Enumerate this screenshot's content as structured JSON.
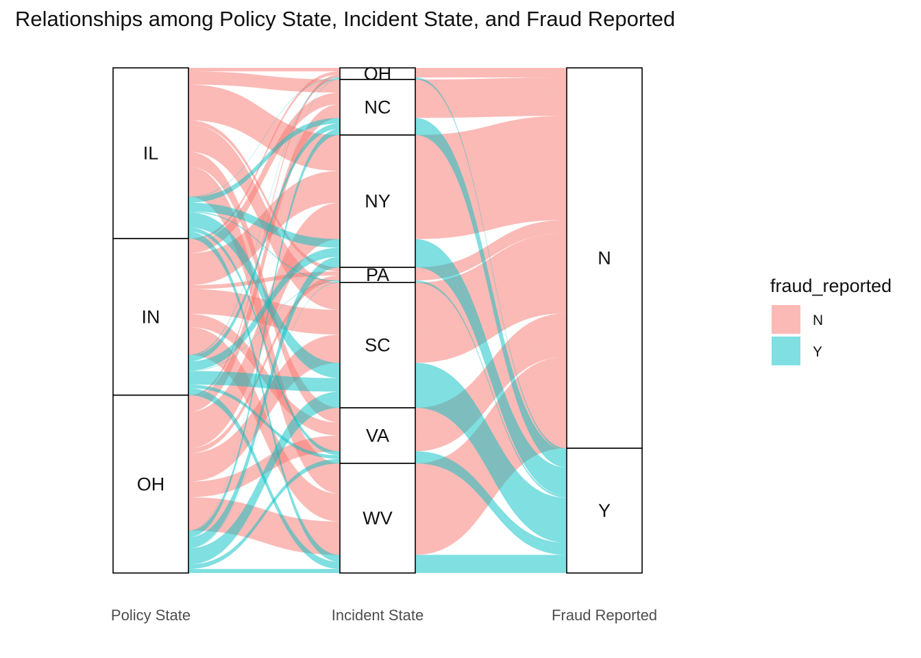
{
  "chart_data": {
    "type": "alluvial",
    "title": "Relationships among Policy State, Incident State, and Fraud Reported",
    "axes": [
      "Policy State",
      "Incident State",
      "Fraud Reported"
    ],
    "legend": {
      "title": "fraud_reported",
      "position": "right",
      "entries": [
        "N",
        "Y"
      ]
    },
    "colors": {
      "N": "#F8766D",
      "Y": "#00BFC4"
    },
    "strata": {
      "Policy State": [
        {
          "label": "IL",
          "count": 338
        },
        {
          "label": "IN",
          "count": 310
        },
        {
          "label": "OH",
          "count": 352
        }
      ],
      "Incident State": [
        {
          "label": "OH",
          "count": 23
        },
        {
          "label": "NC",
          "count": 110
        },
        {
          "label": "NY",
          "count": 262
        },
        {
          "label": "PA",
          "count": 30
        },
        {
          "label": "SC",
          "count": 248
        },
        {
          "label": "VA",
          "count": 110
        },
        {
          "label": "WV",
          "count": 217
        }
      ],
      "Fraud Reported": [
        {
          "label": "N",
          "count": 753
        },
        {
          "label": "Y",
          "count": 247
        }
      ]
    },
    "flows": [
      {
        "policy": "IL",
        "incident": "OH",
        "fraud": "N",
        "count": 7
      },
      {
        "policy": "IL",
        "incident": "OH",
        "fraud": "Y",
        "count": 1
      },
      {
        "policy": "IL",
        "incident": "NC",
        "fraud": "N",
        "count": 26
      },
      {
        "policy": "IL",
        "incident": "NC",
        "fraud": "Y",
        "count": 11
      },
      {
        "policy": "IL",
        "incident": "NY",
        "fraud": "N",
        "count": 71
      },
      {
        "policy": "IL",
        "incident": "NY",
        "fraud": "Y",
        "count": 17
      },
      {
        "policy": "IL",
        "incident": "PA",
        "fraud": "N",
        "count": 8
      },
      {
        "policy": "IL",
        "incident": "PA",
        "fraud": "Y",
        "count": 2
      },
      {
        "policy": "IL",
        "incident": "SC",
        "fraud": "N",
        "count": 54
      },
      {
        "policy": "IL",
        "incident": "SC",
        "fraud": "Y",
        "count": 30
      },
      {
        "policy": "IL",
        "incident": "VA",
        "fraud": "N",
        "count": 29
      },
      {
        "policy": "IL",
        "incident": "VA",
        "fraud": "Y",
        "count": 8
      },
      {
        "policy": "IL",
        "incident": "WV",
        "fraud": "N",
        "count": 60
      },
      {
        "policy": "IL",
        "incident": "WV",
        "fraud": "Y",
        "count": 14
      },
      {
        "policy": "IN",
        "incident": "OH",
        "fraud": "N",
        "count": 6
      },
      {
        "policy": "IN",
        "incident": "OH",
        "fraud": "Y",
        "count": 2
      },
      {
        "policy": "IN",
        "incident": "NC",
        "fraud": "N",
        "count": 23
      },
      {
        "policy": "IN",
        "incident": "NC",
        "fraud": "Y",
        "count": 11
      },
      {
        "policy": "IN",
        "incident": "NY",
        "fraud": "N",
        "count": 63
      },
      {
        "policy": "IN",
        "incident": "NY",
        "fraud": "Y",
        "count": 18
      },
      {
        "policy": "IN",
        "incident": "PA",
        "fraud": "N",
        "count": 8
      },
      {
        "policy": "IN",
        "incident": "PA",
        "fraud": "Y",
        "count": 1
      },
      {
        "policy": "IN",
        "incident": "SC",
        "fraud": "N",
        "count": 49
      },
      {
        "policy": "IN",
        "incident": "SC",
        "fraud": "Y",
        "count": 27
      },
      {
        "policy": "IN",
        "incident": "VA",
        "fraud": "N",
        "count": 26
      },
      {
        "policy": "IN",
        "incident": "VA",
        "fraud": "Y",
        "count": 7
      },
      {
        "policy": "IN",
        "incident": "WV",
        "fraud": "N",
        "count": 55
      },
      {
        "policy": "IN",
        "incident": "WV",
        "fraud": "Y",
        "count": 14
      },
      {
        "policy": "OH",
        "incident": "OH",
        "fraud": "N",
        "count": 6
      },
      {
        "policy": "OH",
        "incident": "OH",
        "fraud": "Y",
        "count": 1
      },
      {
        "policy": "OH",
        "incident": "NC",
        "fraud": "N",
        "count": 27
      },
      {
        "policy": "OH",
        "incident": "NC",
        "fraud": "Y",
        "count": 12
      },
      {
        "policy": "OH",
        "incident": "NY",
        "fraud": "N",
        "count": 72
      },
      {
        "policy": "OH",
        "incident": "NY",
        "fraud": "Y",
        "count": 21
      },
      {
        "policy": "OH",
        "incident": "PA",
        "fraud": "N",
        "count": 10
      },
      {
        "policy": "OH",
        "incident": "PA",
        "fraud": "Y",
        "count": 1
      },
      {
        "policy": "OH",
        "incident": "SC",
        "fraud": "N",
        "count": 56
      },
      {
        "policy": "OH",
        "incident": "SC",
        "fraud": "Y",
        "count": 32
      },
      {
        "policy": "OH",
        "incident": "VA",
        "fraud": "N",
        "count": 31
      },
      {
        "policy": "OH",
        "incident": "VA",
        "fraud": "Y",
        "count": 9
      },
      {
        "policy": "OH",
        "incident": "WV",
        "fraud": "N",
        "count": 66
      },
      {
        "policy": "OH",
        "incident": "WV",
        "fraud": "Y",
        "count": 8
      }
    ]
  }
}
